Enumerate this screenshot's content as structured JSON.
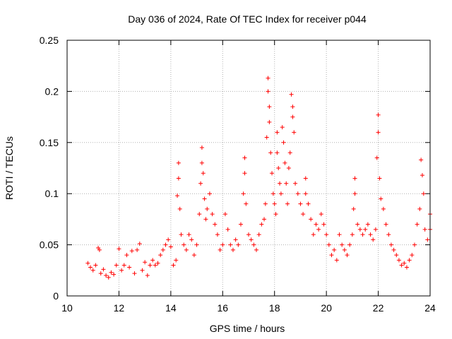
{
  "chart_data": {
    "type": "scatter",
    "title": "Day 036 of 2024, Rate Of TEC Index for receiver p044",
    "xlabel": "GPS time / hours",
    "ylabel": "ROTI / TECUs",
    "xlim": [
      10,
      24
    ],
    "ylim": [
      0,
      0.25
    ],
    "xticks": [
      10,
      12,
      14,
      16,
      18,
      20,
      22,
      24
    ],
    "xtick_labels": [
      "10",
      "12",
      "14",
      "16",
      "18",
      "20",
      "22",
      "24"
    ],
    "yticks": [
      0,
      0.05,
      0.1,
      0.15,
      0.2,
      0.25
    ],
    "ytick_labels": [
      "0",
      "0.05",
      "0.1",
      "0.15",
      "0.2",
      "0.25"
    ],
    "grid": true,
    "marker": "+",
    "color": "#ff0000",
    "series": [
      {
        "name": "ROTI",
        "points": [
          [
            10.8,
            0.032
          ],
          [
            10.9,
            0.028
          ],
          [
            11.0,
            0.025
          ],
          [
            11.1,
            0.03
          ],
          [
            11.2,
            0.047
          ],
          [
            11.25,
            0.045
          ],
          [
            11.3,
            0.022
          ],
          [
            11.4,
            0.026
          ],
          [
            11.5,
            0.02
          ],
          [
            11.6,
            0.018
          ],
          [
            11.7,
            0.023
          ],
          [
            11.8,
            0.021
          ],
          [
            11.9,
            0.03
          ],
          [
            12.0,
            0.046
          ],
          [
            12.1,
            0.025
          ],
          [
            12.2,
            0.03
          ],
          [
            12.3,
            0.04
          ],
          [
            12.4,
            0.028
          ],
          [
            12.5,
            0.044
          ],
          [
            12.6,
            0.022
          ],
          [
            12.7,
            0.045
          ],
          [
            12.8,
            0.051
          ],
          [
            12.9,
            0.025
          ],
          [
            13.0,
            0.033
          ],
          [
            13.1,
            0.02
          ],
          [
            13.2,
            0.03
          ],
          [
            13.3,
            0.035
          ],
          [
            13.4,
            0.03
          ],
          [
            13.5,
            0.032
          ],
          [
            13.6,
            0.04
          ],
          [
            13.7,
            0.045
          ],
          [
            13.8,
            0.05
          ],
          [
            13.9,
            0.055
          ],
          [
            14.0,
            0.048
          ],
          [
            14.1,
            0.03
          ],
          [
            14.2,
            0.035
          ],
          [
            14.25,
            0.098
          ],
          [
            14.3,
            0.13
          ],
          [
            14.3,
            0.115
          ],
          [
            14.35,
            0.085
          ],
          [
            14.4,
            0.06
          ],
          [
            14.5,
            0.05
          ],
          [
            14.6,
            0.045
          ],
          [
            14.7,
            0.06
          ],
          [
            14.8,
            0.055
          ],
          [
            14.9,
            0.04
          ],
          [
            15.0,
            0.05
          ],
          [
            15.1,
            0.08
          ],
          [
            15.15,
            0.11
          ],
          [
            15.2,
            0.145
          ],
          [
            15.2,
            0.13
          ],
          [
            15.25,
            0.12
          ],
          [
            15.3,
            0.095
          ],
          [
            15.35,
            0.075
          ],
          [
            15.4,
            0.085
          ],
          [
            15.5,
            0.1
          ],
          [
            15.6,
            0.08
          ],
          [
            15.7,
            0.07
          ],
          [
            15.8,
            0.06
          ],
          [
            15.9,
            0.045
          ],
          [
            16.0,
            0.05
          ],
          [
            16.1,
            0.08
          ],
          [
            16.2,
            0.065
          ],
          [
            16.3,
            0.05
          ],
          [
            16.4,
            0.045
          ],
          [
            16.5,
            0.055
          ],
          [
            16.6,
            0.05
          ],
          [
            16.7,
            0.07
          ],
          [
            16.8,
            0.1
          ],
          [
            16.85,
            0.135
          ],
          [
            16.85,
            0.12
          ],
          [
            16.9,
            0.09
          ],
          [
            17.0,
            0.06
          ],
          [
            17.1,
            0.055
          ],
          [
            17.2,
            0.05
          ],
          [
            17.3,
            0.045
          ],
          [
            17.4,
            0.06
          ],
          [
            17.5,
            0.07
          ],
          [
            17.6,
            0.075
          ],
          [
            17.65,
            0.09
          ],
          [
            17.7,
            0.155
          ],
          [
            17.75,
            0.213
          ],
          [
            17.75,
            0.2
          ],
          [
            17.8,
            0.185
          ],
          [
            17.8,
            0.17
          ],
          [
            17.85,
            0.14
          ],
          [
            17.9,
            0.12
          ],
          [
            17.95,
            0.1
          ],
          [
            18.0,
            0.09
          ],
          [
            18.05,
            0.08
          ],
          [
            18.1,
            0.16
          ],
          [
            18.1,
            0.14
          ],
          [
            18.15,
            0.125
          ],
          [
            18.2,
            0.11
          ],
          [
            18.25,
            0.1
          ],
          [
            18.3,
            0.165
          ],
          [
            18.35,
            0.15
          ],
          [
            18.4,
            0.13
          ],
          [
            18.45,
            0.11
          ],
          [
            18.5,
            0.09
          ],
          [
            18.55,
            0.125
          ],
          [
            18.6,
            0.14
          ],
          [
            18.65,
            0.197
          ],
          [
            18.7,
            0.185
          ],
          [
            18.7,
            0.175
          ],
          [
            18.75,
            0.16
          ],
          [
            18.8,
            0.11
          ],
          [
            18.9,
            0.1
          ],
          [
            19.0,
            0.09
          ],
          [
            19.1,
            0.08
          ],
          [
            19.2,
            0.115
          ],
          [
            19.2,
            0.1
          ],
          [
            19.3,
            0.09
          ],
          [
            19.4,
            0.075
          ],
          [
            19.5,
            0.06
          ],
          [
            19.6,
            0.07
          ],
          [
            19.7,
            0.065
          ],
          [
            19.8,
            0.08
          ],
          [
            19.9,
            0.07
          ],
          [
            20.0,
            0.06
          ],
          [
            20.1,
            0.05
          ],
          [
            20.2,
            0.04
          ],
          [
            20.3,
            0.045
          ],
          [
            20.4,
            0.035
          ],
          [
            20.5,
            0.06
          ],
          [
            20.6,
            0.05
          ],
          [
            20.7,
            0.045
          ],
          [
            20.8,
            0.04
          ],
          [
            20.9,
            0.05
          ],
          [
            21.0,
            0.06
          ],
          [
            21.05,
            0.085
          ],
          [
            21.1,
            0.115
          ],
          [
            21.1,
            0.1
          ],
          [
            21.2,
            0.07
          ],
          [
            21.3,
            0.065
          ],
          [
            21.4,
            0.06
          ],
          [
            21.5,
            0.065
          ],
          [
            21.6,
            0.07
          ],
          [
            21.7,
            0.06
          ],
          [
            21.8,
            0.055
          ],
          [
            21.9,
            0.065
          ],
          [
            21.95,
            0.135
          ],
          [
            22.0,
            0.177
          ],
          [
            22.0,
            0.16
          ],
          [
            22.05,
            0.115
          ],
          [
            22.1,
            0.095
          ],
          [
            22.2,
            0.085
          ],
          [
            22.3,
            0.07
          ],
          [
            22.4,
            0.06
          ],
          [
            22.5,
            0.05
          ],
          [
            22.6,
            0.045
          ],
          [
            22.7,
            0.04
          ],
          [
            22.8,
            0.035
          ],
          [
            22.9,
            0.03
          ],
          [
            23.0,
            0.032
          ],
          [
            23.1,
            0.028
          ],
          [
            23.2,
            0.035
          ],
          [
            23.3,
            0.04
          ],
          [
            23.4,
            0.05
          ],
          [
            23.5,
            0.07
          ],
          [
            23.6,
            0.085
          ],
          [
            23.65,
            0.133
          ],
          [
            23.7,
            0.118
          ],
          [
            23.75,
            0.1
          ],
          [
            23.8,
            0.065
          ],
          [
            23.9,
            0.055
          ],
          [
            24.0,
            0.08
          ],
          [
            24.0,
            0.065
          ]
        ]
      }
    ]
  }
}
